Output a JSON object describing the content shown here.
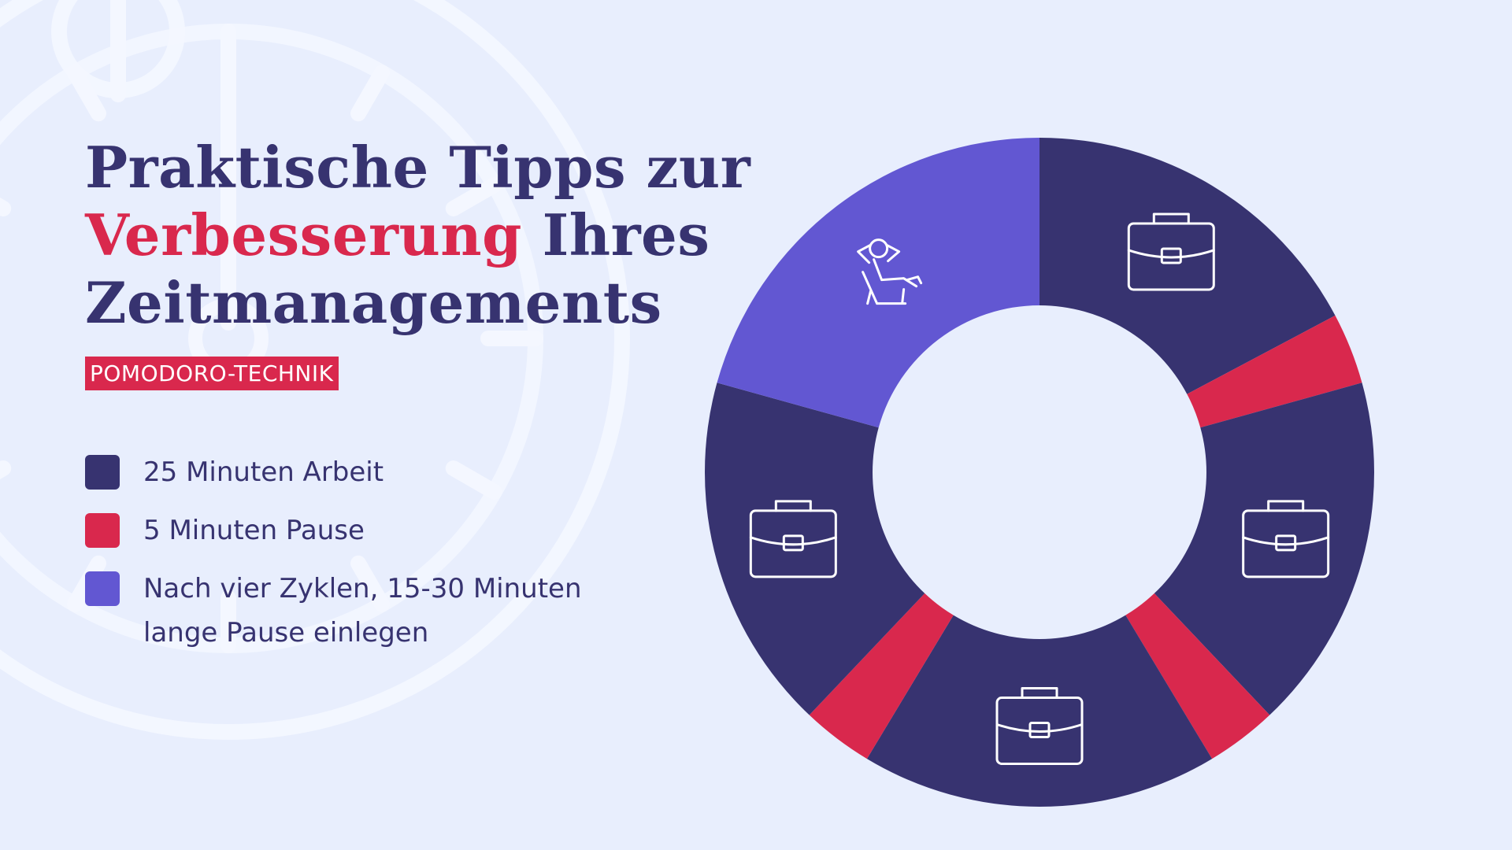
{
  "title": {
    "line1": "Praktische Tipps zur",
    "line2_highlight": "Verbesserung",
    "line2_rest": " Ihres",
    "line3": "Zeitmanagements"
  },
  "tag": "POMODORO-TECHNIK",
  "legend": [
    {
      "label": "25 Minuten Arbeit",
      "color": "#373370"
    },
    {
      "label": "5 Minuten Pause",
      "color": "#d9284d"
    },
    {
      "label": "Nach vier Zyklen, 15-30 Minuten lange Pause einlegen",
      "color": "#6257d2"
    }
  ],
  "colors": {
    "background": "#e8eefd",
    "work": "#373370",
    "pause": "#d9284d",
    "long_pause": "#6257d2",
    "accent": "#d9284d"
  },
  "chart_data": {
    "type": "pie",
    "variant": "donut",
    "unit": "Minuten",
    "slices": [
      {
        "category": "Arbeit",
        "value": 25,
        "icon": "briefcase-icon"
      },
      {
        "category": "Pause",
        "value": 5
      },
      {
        "category": "Arbeit",
        "value": 25,
        "icon": "briefcase-icon"
      },
      {
        "category": "Pause",
        "value": 5
      },
      {
        "category": "Arbeit",
        "value": 25,
        "icon": "briefcase-icon"
      },
      {
        "category": "Pause",
        "value": 5
      },
      {
        "category": "Arbeit",
        "value": 25,
        "icon": "briefcase-icon"
      },
      {
        "category": "Lange Pause",
        "value": 30,
        "icon": "relaxing-person-icon"
      }
    ]
  }
}
